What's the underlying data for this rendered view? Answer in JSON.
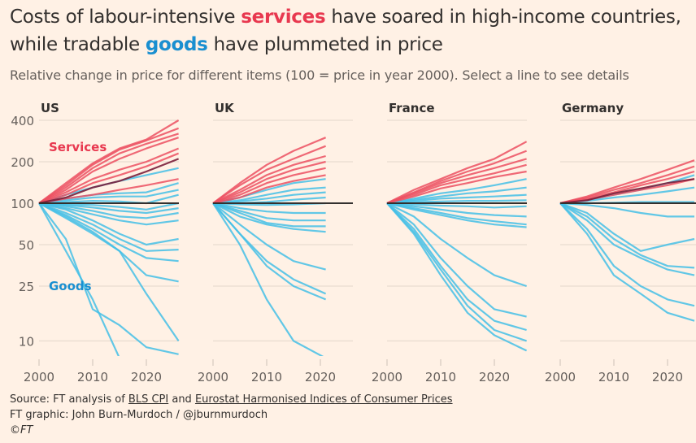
{
  "title": {
    "part1": "Costs of labour-intensive ",
    "services_word": "services",
    "part2": " have soared in high-income countries,",
    "line2a": "while tradable ",
    "goods_word": "goods",
    "line2b": " have plummeted in price"
  },
  "subtitle": "Relative change in price for different items (100 = price in year 2000). Select a line to see details",
  "footer": {
    "source_prefix": "Source: FT analysis of ",
    "link1": "BLS CPI",
    "mid": " and ",
    "link2": "Eurostat Harmonised Indices of Consumer Prices",
    "credit": "FT graphic: John Burn-Murdoch / @jburnmurdoch",
    "copyright": "©FT"
  },
  "colors": {
    "services": "#ec5062",
    "goods": "#45bfe6",
    "highlight": "#7a1e3a",
    "baseline": "#33302e",
    "background": "#fff1e5"
  },
  "chart_data": [
    {
      "type": "line",
      "panel": "US",
      "yscale": "log",
      "ylim": [
        8,
        420
      ],
      "xlim": [
        2000,
        2026
      ],
      "yticks": [
        400,
        200,
        100,
        50,
        25,
        10
      ],
      "xticks": [
        2000,
        2010,
        2020
      ],
      "grid": true,
      "annotations": [
        "Services",
        "Goods"
      ],
      "x": [
        2000,
        2005,
        2010,
        2015,
        2020,
        2026
      ],
      "services": [
        [
          100,
          140,
          195,
          250,
          290,
          400
        ],
        [
          100,
          135,
          190,
          245,
          285,
          350
        ],
        [
          100,
          130,
          180,
          230,
          270,
          320
        ],
        [
          100,
          125,
          170,
          210,
          250,
          300
        ],
        [
          100,
          120,
          150,
          175,
          200,
          250
        ],
        [
          100,
          115,
          140,
          160,
          185,
          230
        ],
        [
          100,
          108,
          115,
          125,
          135,
          150
        ]
      ],
      "highlight": [
        [
          100,
          110,
          130,
          145,
          170,
          210
        ]
      ],
      "goods": [
        [
          100,
          115,
          130,
          145,
          160,
          180
        ],
        [
          100,
          108,
          115,
          118,
          120,
          140
        ],
        [
          100,
          105,
          110,
          112,
          112,
          125
        ],
        [
          100,
          102,
          104,
          103,
          100,
          115
        ],
        [
          100,
          98,
          97,
          94,
          90,
          100
        ],
        [
          100,
          97,
          93,
          88,
          85,
          92
        ],
        [
          100,
          95,
          88,
          80,
          78,
          85
        ],
        [
          100,
          92,
          83,
          75,
          70,
          75
        ],
        [
          100,
          90,
          75,
          60,
          50,
          55
        ],
        [
          100,
          85,
          70,
          55,
          45,
          46
        ],
        [
          100,
          82,
          65,
          50,
          40,
          38
        ],
        [
          100,
          78,
          60,
          45,
          30,
          27
        ],
        [
          100,
          80,
          62,
          45,
          22,
          10
        ],
        [
          100,
          55,
          17,
          13,
          9,
          8
        ],
        [
          100,
          45,
          20,
          7.5,
          null,
          null
        ]
      ]
    },
    {
      "type": "line",
      "panel": "UK",
      "yscale": "log",
      "ylim": [
        8,
        420
      ],
      "xlim": [
        2000,
        2021
      ],
      "xticks": [
        2000,
        2010,
        2020
      ],
      "grid": true,
      "x": [
        2000,
        2005,
        2010,
        2015,
        2021
      ],
      "services": [
        [
          100,
          140,
          190,
          240,
          300
        ],
        [
          100,
          135,
          175,
          210,
          260
        ],
        [
          100,
          125,
          160,
          190,
          220
        ],
        [
          100,
          120,
          150,
          175,
          200
        ],
        [
          100,
          115,
          140,
          160,
          180
        ],
        [
          100,
          110,
          130,
          145,
          160
        ]
      ],
      "highlight": [],
      "goods": [
        [
          100,
          110,
          125,
          140,
          150
        ],
        [
          100,
          105,
          115,
          125,
          130
        ],
        [
          100,
          103,
          108,
          115,
          120
        ],
        [
          100,
          100,
          102,
          106,
          110
        ],
        [
          100,
          98,
          97,
          98,
          100
        ],
        [
          100,
          92,
          87,
          85,
          85
        ],
        [
          100,
          88,
          78,
          75,
          75
        ],
        [
          100,
          85,
          72,
          68,
          68
        ],
        [
          100,
          80,
          70,
          65,
          62
        ],
        [
          100,
          70,
          50,
          38,
          33
        ],
        [
          100,
          60,
          38,
          28,
          22
        ],
        [
          100,
          60,
          35,
          25,
          20
        ],
        [
          100,
          50,
          20,
          10,
          7.5
        ]
      ]
    },
    {
      "type": "line",
      "panel": "France",
      "yscale": "log",
      "ylim": [
        8,
        420
      ],
      "xlim": [
        2000,
        2026
      ],
      "xticks": [
        2000,
        2010,
        2020
      ],
      "grid": true,
      "x": [
        2000,
        2005,
        2010,
        2015,
        2020,
        2026
      ],
      "services": [
        [
          100,
          125,
          150,
          180,
          210,
          280
        ],
        [
          100,
          120,
          145,
          170,
          195,
          240
        ],
        [
          100,
          118,
          140,
          160,
          180,
          210
        ],
        [
          100,
          115,
          135,
          150,
          165,
          190
        ],
        [
          100,
          112,
          128,
          140,
          155,
          170
        ]
      ],
      "highlight": [],
      "goods": [
        [
          100,
          108,
          118,
          125,
          135,
          150
        ],
        [
          100,
          106,
          112,
          118,
          122,
          130
        ],
        [
          100,
          104,
          108,
          110,
          112,
          115
        ],
        [
          100,
          102,
          103,
          104,
          104,
          105
        ],
        [
          100,
          98,
          96,
          95,
          93,
          95
        ],
        [
          100,
          95,
          90,
          85,
          82,
          80
        ],
        [
          100,
          92,
          85,
          78,
          74,
          70
        ],
        [
          100,
          90,
          82,
          75,
          70,
          67
        ],
        [
          100,
          80,
          55,
          40,
          30,
          25
        ],
        [
          100,
          70,
          40,
          25,
          17,
          15
        ],
        [
          100,
          65,
          35,
          20,
          14,
          12
        ],
        [
          100,
          62,
          33,
          18,
          12,
          10
        ],
        [
          100,
          60,
          30,
          16,
          11,
          8.5
        ]
      ]
    },
    {
      "type": "line",
      "panel": "Germany",
      "yscale": "log",
      "ylim": [
        8,
        420
      ],
      "xlim": [
        2000,
        2026
      ],
      "xticks": [
        2000,
        2010,
        2020
      ],
      "grid": true,
      "x": [
        2000,
        2005,
        2010,
        2015,
        2020,
        2025
      ],
      "services": [
        [
          100,
          112,
          130,
          150,
          175,
          205
        ],
        [
          100,
          110,
          125,
          140,
          160,
          185
        ],
        [
          100,
          108,
          120,
          135,
          150,
          170
        ],
        [
          100,
          106,
          115,
          125,
          135,
          150
        ]
      ],
      "highlight": [
        [
          100,
          105,
          118,
          128,
          140,
          150
        ]
      ],
      "goods": [
        [
          100,
          106,
          115,
          125,
          140,
          160
        ],
        [
          100,
          104,
          110,
          115,
          122,
          130
        ],
        [
          100,
          100,
          101,
          102,
          102,
          102
        ],
        [
          100,
          97,
          92,
          85,
          80,
          80
        ],
        [
          100,
          85,
          60,
          45,
          50,
          55
        ],
        [
          100,
          80,
          55,
          42,
          35,
          34
        ],
        [
          100,
          75,
          50,
          40,
          33,
          30
        ],
        [
          100,
          65,
          35,
          25,
          20,
          18
        ],
        [
          100,
          60,
          30,
          22,
          16,
          14
        ]
      ]
    }
  ]
}
